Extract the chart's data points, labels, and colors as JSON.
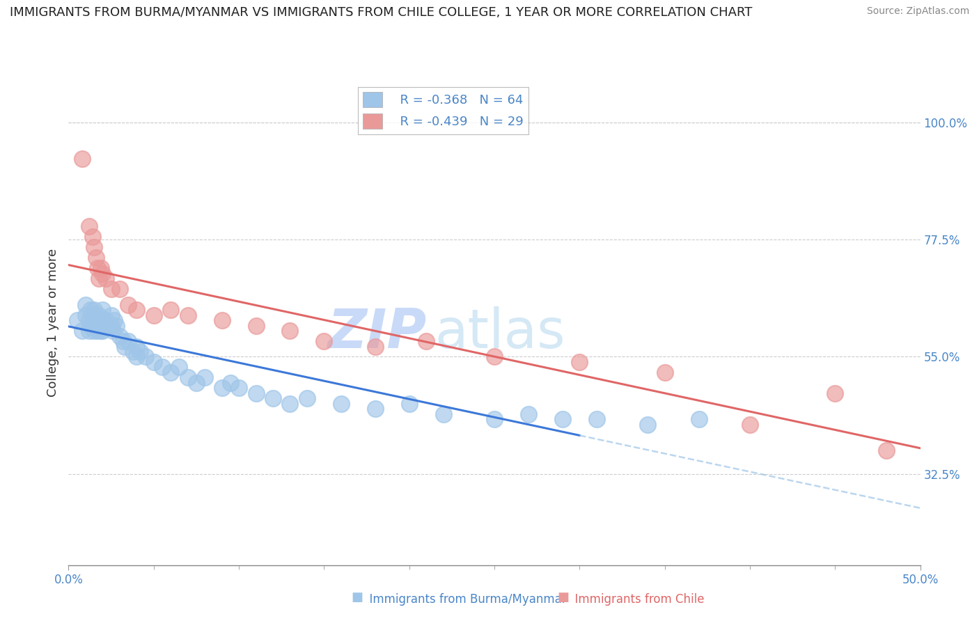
{
  "title": "IMMIGRANTS FROM BURMA/MYANMAR VS IMMIGRANTS FROM CHILE COLLEGE, 1 YEAR OR MORE CORRELATION CHART",
  "source": "Source: ZipAtlas.com",
  "ylabel": "College, 1 year or more",
  "xlim": [
    0.0,
    0.5
  ],
  "ylim": [
    0.15,
    1.08
  ],
  "xticks_minor": [
    0.0,
    0.05,
    0.1,
    0.15,
    0.2,
    0.25,
    0.3,
    0.35,
    0.4,
    0.45,
    0.5
  ],
  "xticks_labeled": [
    0.0,
    0.5
  ],
  "xticklabels": [
    "0.0%",
    "50.0%"
  ],
  "right_yticklabels": [
    "100.0%",
    "77.5%",
    "55.0%",
    "32.5%"
  ],
  "right_ytickvals": [
    1.0,
    0.775,
    0.55,
    0.325
  ],
  "legend_r1": "R = -0.368",
  "legend_n1": "N = 64",
  "legend_r2": "R = -0.439",
  "legend_n2": "N = 29",
  "color_blue": "#9fc5e8",
  "color_pink": "#ea9999",
  "color_blue_line": "#3c78d8",
  "color_pink_line": "#e06666",
  "color_dashed": "#9fc5e8",
  "watermark_zip": "ZIP",
  "watermark_atlas": "atlas",
  "watermark_color": "#c9daf8",
  "watermark_color2": "#d5e8f5",
  "background_color": "#ffffff",
  "grid_color": "#cccccc",
  "blue_x": [
    0.005,
    0.008,
    0.01,
    0.01,
    0.012,
    0.012,
    0.013,
    0.013,
    0.014,
    0.015,
    0.015,
    0.015,
    0.016,
    0.016,
    0.017,
    0.017,
    0.018,
    0.018,
    0.019,
    0.019,
    0.02,
    0.02,
    0.02,
    0.021,
    0.022,
    0.023,
    0.025,
    0.025,
    0.026,
    0.027,
    0.028,
    0.03,
    0.032,
    0.033,
    0.035,
    0.038,
    0.04,
    0.04,
    0.042,
    0.045,
    0.05,
    0.055,
    0.06,
    0.065,
    0.07,
    0.075,
    0.08,
    0.09,
    0.095,
    0.1,
    0.11,
    0.12,
    0.13,
    0.14,
    0.16,
    0.18,
    0.2,
    0.22,
    0.25,
    0.27,
    0.29,
    0.31,
    0.34,
    0.37
  ],
  "blue_y": [
    0.62,
    0.6,
    0.65,
    0.63,
    0.62,
    0.6,
    0.64,
    0.61,
    0.63,
    0.64,
    0.62,
    0.6,
    0.63,
    0.61,
    0.62,
    0.6,
    0.63,
    0.61,
    0.62,
    0.6,
    0.64,
    0.62,
    0.6,
    0.61,
    0.62,
    0.61,
    0.63,
    0.61,
    0.6,
    0.62,
    0.61,
    0.59,
    0.58,
    0.57,
    0.58,
    0.56,
    0.57,
    0.55,
    0.56,
    0.55,
    0.54,
    0.53,
    0.52,
    0.53,
    0.51,
    0.5,
    0.51,
    0.49,
    0.5,
    0.49,
    0.48,
    0.47,
    0.46,
    0.47,
    0.46,
    0.45,
    0.46,
    0.44,
    0.43,
    0.44,
    0.43,
    0.43,
    0.42,
    0.43
  ],
  "pink_x": [
    0.008,
    0.012,
    0.014,
    0.015,
    0.016,
    0.017,
    0.018,
    0.019,
    0.02,
    0.022,
    0.025,
    0.03,
    0.035,
    0.04,
    0.05,
    0.06,
    0.07,
    0.09,
    0.11,
    0.13,
    0.15,
    0.18,
    0.21,
    0.25,
    0.3,
    0.35,
    0.4,
    0.45,
    0.48
  ],
  "pink_y": [
    0.93,
    0.8,
    0.78,
    0.76,
    0.74,
    0.72,
    0.7,
    0.72,
    0.71,
    0.7,
    0.68,
    0.68,
    0.65,
    0.64,
    0.63,
    0.64,
    0.63,
    0.62,
    0.61,
    0.6,
    0.58,
    0.57,
    0.58,
    0.55,
    0.54,
    0.52,
    0.42,
    0.48,
    0.37
  ],
  "blue_line_xstart": 0.0,
  "blue_line_xend": 0.3,
  "blue_dash_xstart": 0.3,
  "blue_dash_xend": 0.5
}
